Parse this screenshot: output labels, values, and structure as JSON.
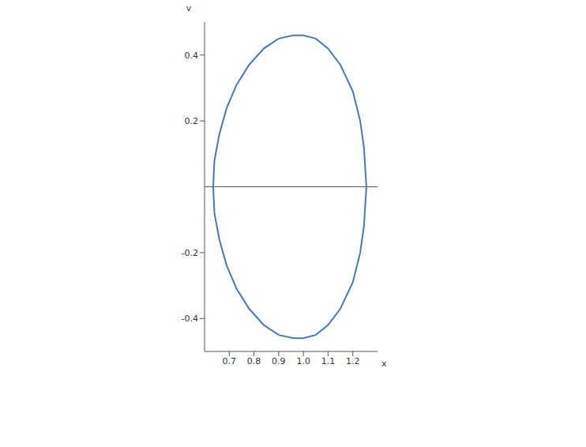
{
  "chart_data": {
    "type": "line",
    "x_label": "x",
    "y_label": "v",
    "color": "#4a78b5",
    "x": [
      0.635,
      0.64,
      0.66,
      0.69,
      0.73,
      0.78,
      0.84,
      0.9,
      0.96,
      1.0,
      1.05,
      1.1,
      1.15,
      1.2,
      1.23,
      1.245,
      1.255,
      1.245,
      1.23,
      1.2,
      1.15,
      1.1,
      1.05,
      1.0,
      0.96,
      0.9,
      0.84,
      0.78,
      0.73,
      0.69,
      0.66,
      0.64,
      0.635
    ],
    "values": [
      0.0,
      0.08,
      0.16,
      0.24,
      0.31,
      0.37,
      0.42,
      0.45,
      0.46,
      0.46,
      0.45,
      0.42,
      0.37,
      0.29,
      0.2,
      0.12,
      0.0,
      -0.12,
      -0.2,
      -0.29,
      -0.37,
      -0.42,
      -0.45,
      -0.46,
      -0.46,
      -0.45,
      -0.42,
      -0.37,
      -0.31,
      -0.24,
      -0.16,
      -0.08,
      0.0
    ],
    "xlim": [
      0.6,
      1.3
    ],
    "ylim": [
      -0.5,
      0.5
    ],
    "xticks": [
      0.7,
      0.8,
      0.9,
      {
        "value": 1,
        "label": "1.0"
      },
      1.1,
      1.2
    ],
    "yticks": [
      -0.4,
      -0.2,
      0.2,
      0.4
    ]
  }
}
